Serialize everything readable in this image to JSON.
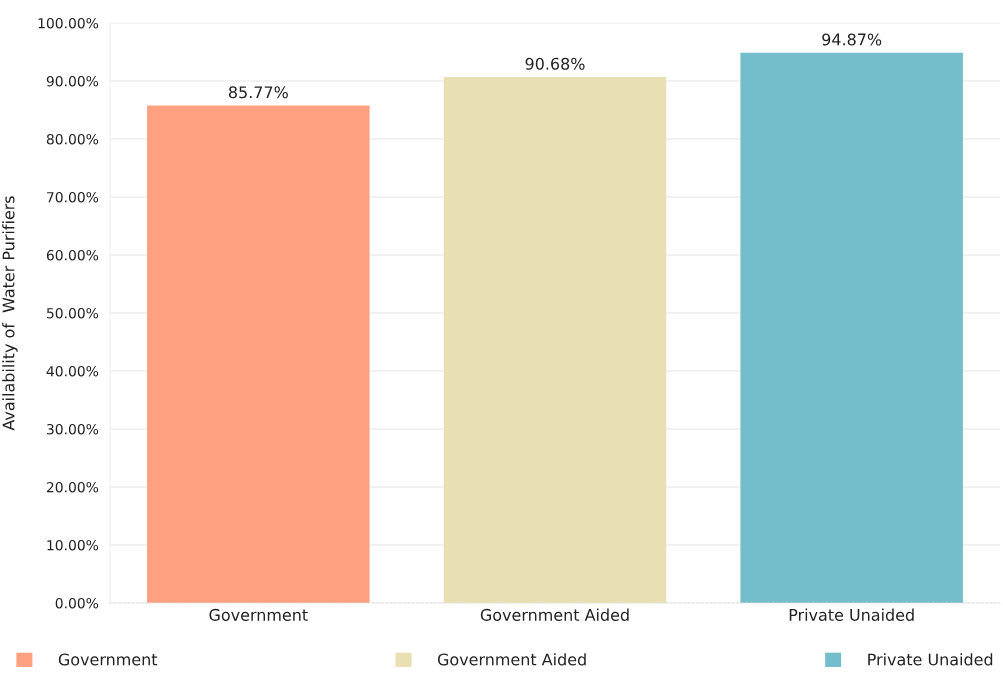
{
  "chart_data": {
    "type": "bar",
    "ylabel": "Availability of  Water Purifiers",
    "categories": [
      "Government",
      "Government Aided",
      "Private Unaided"
    ],
    "series": [
      {
        "name": "Government",
        "color": "#ffa181",
        "values": [
          85.77,
          null,
          null
        ],
        "value_labels": [
          "85.77%",
          null,
          null
        ]
      },
      {
        "name": "Government Aided",
        "color": "#e8e0b3",
        "values": [
          null,
          90.68,
          null
        ],
        "value_labels": [
          null,
          "90.68%",
          null
        ]
      },
      {
        "name": "Private Unaided",
        "color": "#74bdca",
        "values": [
          null,
          null,
          94.87
        ],
        "value_labels": [
          null,
          null,
          "94.87%"
        ]
      }
    ],
    "ylim": [
      0,
      100
    ],
    "yticks": [
      {
        "value": 0,
        "label": "0.00%"
      },
      {
        "value": 10,
        "label": "10.00%"
      },
      {
        "value": 20,
        "label": "20.00%"
      },
      {
        "value": 30,
        "label": "30.00%"
      },
      {
        "value": 40,
        "label": "40.00%"
      },
      {
        "value": 50,
        "label": "50.00%"
      },
      {
        "value": 60,
        "label": "60.00%"
      },
      {
        "value": 70,
        "label": "70.00%"
      },
      {
        "value": 80,
        "label": "80.00%"
      },
      {
        "value": 90,
        "label": "90.00%"
      },
      {
        "value": 100,
        "label": "100.00%"
      }
    ],
    "grid": "y",
    "legend": "bottom"
  }
}
